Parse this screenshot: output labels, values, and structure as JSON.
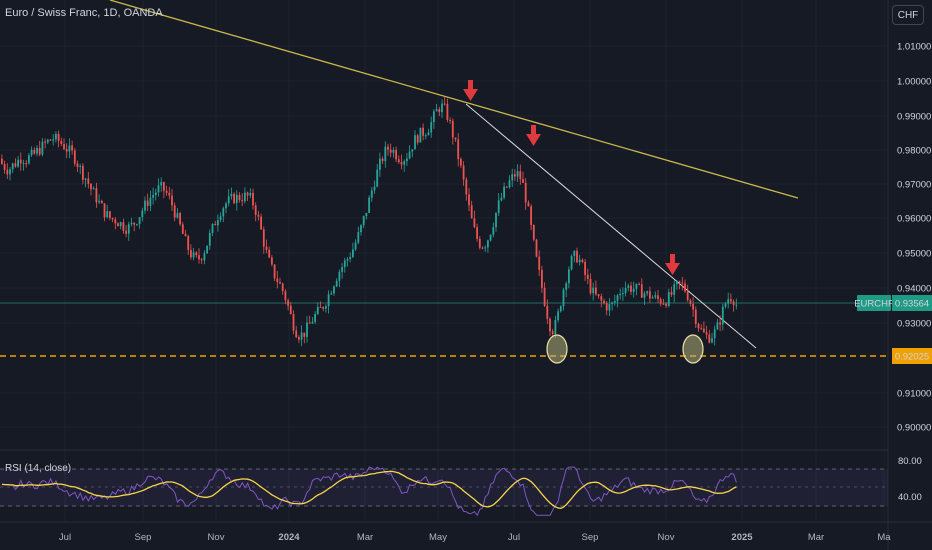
{
  "header": {
    "legend": "Euro / Swiss Franc, 1D, OANDA",
    "currency_button": "CHF"
  },
  "rsi": {
    "legend": "RSI (14, close)",
    "scale": [
      "80.00",
      "40.00"
    ]
  },
  "chart_data": {
    "type": "candlestick",
    "symbol": "EURCHF",
    "last_price": "0.93564",
    "support_level": "0.92025",
    "yticks": [
      "1.01000",
      "1.00000",
      "0.99000",
      "0.98000",
      "0.97000",
      "0.96000",
      "0.95000",
      "0.94000",
      "0.93000",
      "0.91000",
      "0.90000"
    ],
    "xticks": [
      "Jul",
      "Sep",
      "Nov",
      "2024",
      "Mar",
      "May",
      "Jul",
      "Sep",
      "Nov",
      "2025",
      "Mar",
      "Ma"
    ],
    "close_series": [
      0.976,
      0.9752,
      0.9745,
      0.9748,
      0.9756,
      0.9762,
      0.977,
      0.9778,
      0.9776,
      0.9773,
      0.9779,
      0.9783,
      0.9788,
      0.9796,
      0.9802,
      0.981,
      0.9818,
      0.9824,
      0.9829,
      0.9834,
      0.983,
      0.9826,
      0.9819,
      0.9812,
      0.9804,
      0.9796,
      0.979,
      0.9778,
      0.9762,
      0.9746,
      0.9732,
      0.972,
      0.9704,
      0.9688,
      0.9676,
      0.9662,
      0.9648,
      0.9635,
      0.9622,
      0.9612,
      0.9605,
      0.9601,
      0.9599,
      0.9594,
      0.9588,
      0.9582,
      0.9577,
      0.9578,
      0.9583,
      0.9591,
      0.9602,
      0.9614,
      0.9628,
      0.964,
      0.9653,
      0.9663,
      0.9672,
      0.9681,
      0.9688,
      0.969,
      0.9685,
      0.9675,
      0.966,
      0.9643,
      0.9622,
      0.9601,
      0.958,
      0.9558,
      0.9536,
      0.9517,
      0.9501,
      0.9491,
      0.9486,
      0.9489,
      0.9498,
      0.9512,
      0.9531,
      0.9553,
      0.9573,
      0.9594,
      0.9612,
      0.9626,
      0.9638,
      0.9647,
      0.9653,
      0.9658,
      0.9662,
      0.9663,
      0.9664,
      0.9665,
      0.9667,
      0.9666,
      0.966,
      0.9647,
      0.9627,
      0.96,
      0.9568,
      0.9535,
      0.9504,
      0.9478,
      0.9457,
      0.944,
      0.9426,
      0.9412,
      0.9396,
      0.9375,
      0.935,
      0.9323,
      0.9299,
      0.928,
      0.927,
      0.9269,
      0.9275,
      0.9286,
      0.9299,
      0.9313,
      0.9324,
      0.9333,
      0.9342,
      0.9353,
      0.9367,
      0.9384,
      0.9403,
      0.9421,
      0.9438,
      0.9453,
      0.9465,
      0.9476,
      0.9488,
      0.9501,
      0.9516,
      0.9534,
      0.9554,
      0.9576,
      0.9601,
      0.9627,
      0.9655,
      0.9684,
      0.9712,
      0.9736,
      0.9758,
      0.9778,
      0.9795,
      0.9804,
      0.9804,
      0.9797,
      0.9788,
      0.978,
      0.9776,
      0.9777,
      0.9785,
      0.9799,
      0.9815,
      0.9829,
      0.9839,
      0.9846,
      0.9851,
      0.9856,
      0.9865,
      0.9878,
      0.9895,
      0.9911,
      0.9922,
      0.9924,
      0.9916,
      0.9898,
      0.9873,
      0.9845,
      0.9814,
      0.9781,
      0.9746,
      0.9708,
      0.967,
      0.9632,
      0.9597,
      0.9568,
      0.9546,
      0.9532,
      0.9527,
      0.9532,
      0.9546,
      0.9568,
      0.9593,
      0.9619,
      0.9643,
      0.9663,
      0.968,
      0.9694,
      0.9708,
      0.972,
      0.9729,
      0.973,
      0.972,
      0.9698,
      0.9664,
      0.9621,
      0.9574,
      0.9527,
      0.9483,
      0.9443,
      0.9405,
      0.9367,
      0.9328,
      0.9297,
      0.9285,
      0.9297,
      0.9327,
      0.9365,
      0.9402,
      0.9435,
      0.9462,
      0.9482,
      0.9493,
      0.9493,
      0.9482,
      0.9463,
      0.9441,
      0.942,
      0.9403,
      0.9389,
      0.9379,
      0.9371,
      0.9364,
      0.9357,
      0.9352,
      0.935,
      0.9355,
      0.9366,
      0.938,
      0.9394,
      0.9403,
      0.9407,
      0.9406,
      0.9404,
      0.9402,
      0.94,
      0.9397,
      0.9393,
      0.9389,
      0.9385,
      0.9381,
      0.9377,
      0.9373,
      0.937,
      0.9368,
      0.9367,
      0.9369,
      0.9375,
      0.9385,
      0.9397,
      0.9408,
      0.9413,
      0.941,
      0.9399,
      0.9383,
      0.9363,
      0.9341,
      0.9318,
      0.9297,
      0.9281,
      0.9271,
      0.9265,
      0.9264,
      0.9268,
      0.9276,
      0.9291,
      0.9313,
      0.9338,
      0.936,
      0.9374,
      0.9378,
      0.9372,
      0.9356
    ],
    "rsi_range": [
      40,
      80
    ]
  }
}
